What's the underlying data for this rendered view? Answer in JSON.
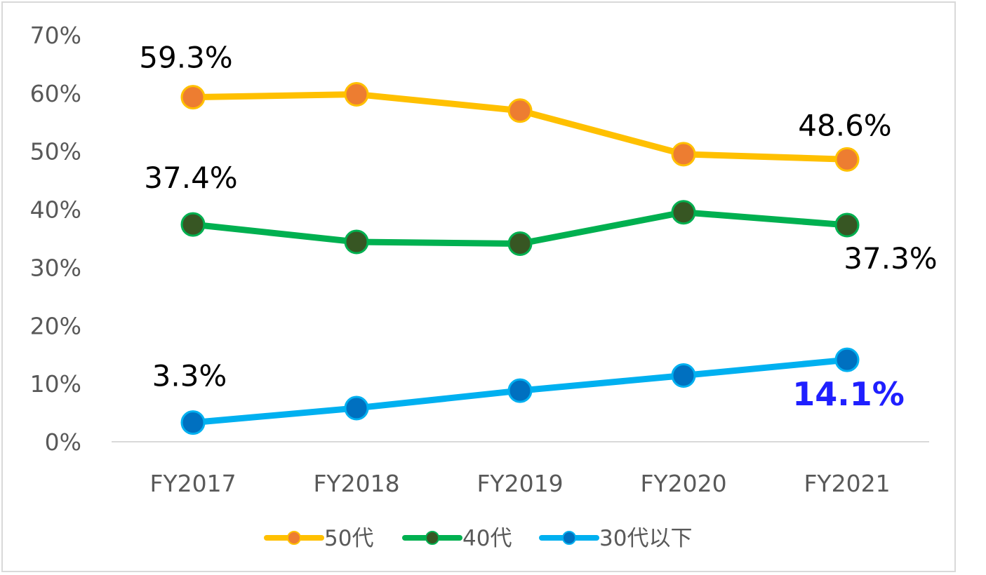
{
  "chart_data": {
    "type": "line",
    "categories": [
      "FY2017",
      "FY2018",
      "FY2019",
      "FY2020",
      "FY2021"
    ],
    "ylim": [
      0,
      70
    ],
    "yticks": [
      0,
      10,
      20,
      30,
      40,
      50,
      60,
      70
    ],
    "ytick_labels": [
      "0%",
      "10%",
      "20%",
      "30%",
      "40%",
      "50%",
      "60%",
      "70%"
    ],
    "y_unit": "percent",
    "grid": false,
    "legend_position": "bottom",
    "series": [
      {
        "name": "50代",
        "line_color": "#FFC000",
        "marker_color": "#ED7D31",
        "values": [
          59.3,
          59.8,
          57.0,
          49.5,
          48.6
        ]
      },
      {
        "name": "40代",
        "line_color": "#00B050",
        "marker_color": "#375623",
        "values": [
          37.4,
          34.4,
          34.1,
          39.5,
          37.3
        ]
      },
      {
        "name": "30代以下",
        "line_color": "#00B0F0",
        "marker_color": "#0070C0",
        "values": [
          3.3,
          5.8,
          8.8,
          11.4,
          14.1
        ]
      }
    ],
    "data_labels": [
      {
        "series": 0,
        "index": 0,
        "text": "59.3%",
        "color": "#000000",
        "emphasis": false
      },
      {
        "series": 0,
        "index": 4,
        "text": "48.6%",
        "color": "#000000",
        "emphasis": false
      },
      {
        "series": 1,
        "index": 0,
        "text": "37.4%",
        "color": "#000000",
        "emphasis": false
      },
      {
        "series": 1,
        "index": 4,
        "text": "37.3%",
        "color": "#000000",
        "emphasis": false
      },
      {
        "series": 2,
        "index": 0,
        "text": "3.3%",
        "color": "#000000",
        "emphasis": false
      },
      {
        "series": 2,
        "index": 4,
        "text": "14.1%",
        "color": "#1F1FFF",
        "emphasis": true
      }
    ]
  }
}
